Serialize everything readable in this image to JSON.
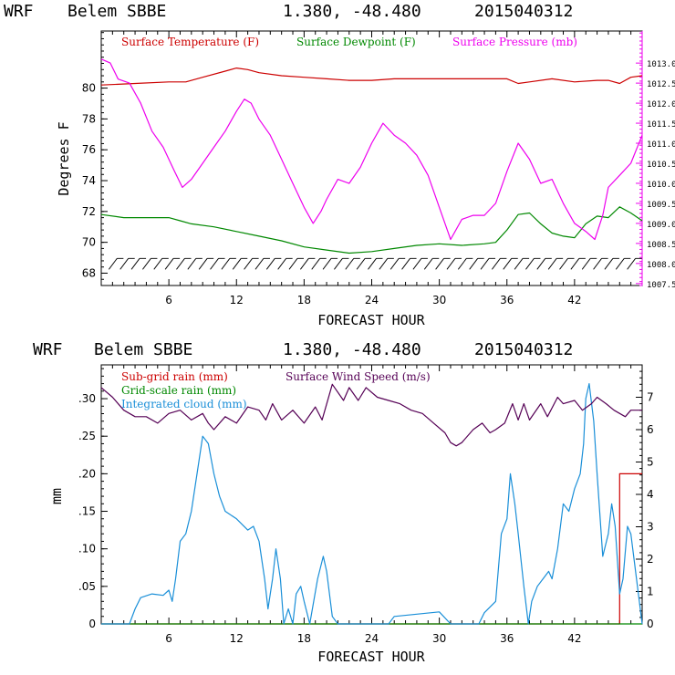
{
  "chart_data": [
    {
      "type": "line",
      "title": "WRF   Belem SBBE     1.380, -48.480  2015040312",
      "header": {
        "model": "WRF",
        "station": "Belem SBBE",
        "coords": "1.380, -48.480",
        "init": "2015040312"
      },
      "xlabel": "FORECAST HOUR",
      "ylabel": "Degrees F",
      "xlim": [
        0,
        48
      ],
      "ylim": [
        67.2,
        83.7
      ],
      "y2lim": [
        1007.45,
        1013.8
      ],
      "x_ticks": [
        6,
        12,
        18,
        24,
        30,
        36,
        42
      ],
      "x_tick_labels": [
        "6",
        "12",
        "18",
        "24",
        "30",
        "36",
        "42"
      ],
      "y_ticks": [
        68,
        70,
        72,
        74,
        76,
        78,
        80
      ],
      "y_tick_labels": [
        "68",
        "70",
        "72",
        "74",
        "76",
        "78",
        "80"
      ],
      "y2_ticks": [
        1007.5,
        1008.0,
        1008.5,
        1009.0,
        1009.5,
        1010.0,
        1010.5,
        1011.0,
        1011.5,
        1012.0,
        1012.5,
        1013.0
      ],
      "y2_tick_labels": [
        "1007.5",
        "1008.0",
        "1008.5",
        "1009.0",
        "1009.5",
        "1010.0",
        "1010.5",
        "1011.0",
        "1011.5",
        "1012.0",
        "1012.5",
        "1013.0"
      ],
      "wind_barb_level": 68.6,
      "legend": [
        {
          "label": "Surface Temperature (F)",
          "color": "#cc0000"
        },
        {
          "label": "Surface Dewpoint (F)",
          "color": "#008800"
        },
        {
          "label": "Surface Pressure (mb)",
          "color": "#ee00ee"
        }
      ],
      "series": [
        {
          "name": "Surface Temperature (F)",
          "axis": "left",
          "color": "#cc0000",
          "x": [
            0,
            3,
            6,
            7.5,
            9,
            11,
            12,
            13,
            14,
            16,
            18,
            20,
            22,
            24,
            26,
            28,
            30,
            32,
            34,
            36,
            37,
            38,
            40,
            42,
            44,
            45,
            46,
            47,
            48
          ],
          "values": [
            80.2,
            80.3,
            80.4,
            80.4,
            80.7,
            81.1,
            81.3,
            81.2,
            81.0,
            80.8,
            80.7,
            80.6,
            80.5,
            80.5,
            80.6,
            80.6,
            80.6,
            80.6,
            80.6,
            80.6,
            80.3,
            80.4,
            80.6,
            80.4,
            80.5,
            80.5,
            80.3,
            80.7,
            80.8
          ]
        },
        {
          "name": "Surface Dewpoint (F)",
          "axis": "left",
          "color": "#008800",
          "x": [
            0,
            2,
            4,
            6,
            7,
            8,
            10,
            12,
            14,
            16,
            18,
            20,
            22,
            24,
            26,
            28,
            30,
            32,
            34,
            35,
            36,
            37,
            38,
            39,
            40,
            41,
            42,
            43,
            44,
            45,
            46,
            47,
            48
          ],
          "values": [
            71.8,
            71.6,
            71.6,
            71.6,
            71.4,
            71.2,
            71.0,
            70.7,
            70.4,
            70.1,
            69.7,
            69.5,
            69.3,
            69.4,
            69.6,
            69.8,
            69.9,
            69.8,
            69.9,
            70.0,
            70.8,
            71.8,
            71.9,
            71.2,
            70.6,
            70.4,
            70.3,
            71.2,
            71.7,
            71.6,
            72.3,
            71.9,
            71.4
          ]
        },
        {
          "name": "Surface Pressure (mb)",
          "axis": "right",
          "color": "#ee00ee",
          "x": [
            0,
            0.8,
            1.5,
            2.5,
            3.5,
            4.5,
            5.5,
            6.5,
            7.2,
            8,
            9,
            10,
            11,
            12,
            12.7,
            13.3,
            14,
            15,
            16,
            17,
            18,
            18.8,
            19.5,
            20,
            21,
            22,
            23,
            24,
            25,
            26,
            27,
            28,
            29,
            30,
            31,
            32,
            33,
            34,
            35,
            36,
            37,
            38,
            39,
            40,
            41,
            42,
            43,
            43.8,
            44.5,
            45,
            46,
            47,
            48
          ],
          "values": [
            1013.1,
            1013.0,
            1012.6,
            1012.5,
            1012.0,
            1011.3,
            1010.9,
            1010.3,
            1009.9,
            1010.1,
            1010.5,
            1010.9,
            1011.3,
            1011.8,
            1012.1,
            1012.0,
            1011.6,
            1011.2,
            1010.6,
            1010.0,
            1009.4,
            1009.0,
            1009.3,
            1009.6,
            1010.1,
            1010.0,
            1010.4,
            1011.0,
            1011.5,
            1011.2,
            1011.0,
            1010.7,
            1010.2,
            1009.4,
            1008.6,
            1009.1,
            1009.2,
            1009.2,
            1009.5,
            1010.3,
            1011.0,
            1010.6,
            1010.0,
            1010.1,
            1009.5,
            1009.0,
            1008.8,
            1008.6,
            1009.2,
            1009.9,
            1010.2,
            1010.5,
            1011.2
          ]
        }
      ]
    },
    {
      "type": "line",
      "title": "WRF   Belem SBBE     1.380, -48.480  2015040312",
      "header": {
        "model": "WRF",
        "station": "Belem SBBE",
        "coords": "1.380, -48.480",
        "init": "2015040312"
      },
      "xlabel": "FORECAST HOUR",
      "ylabel": "mm",
      "xlim": [
        0,
        48
      ],
      "ylim": [
        0,
        0.345
      ],
      "y2lim": [
        0,
        8.0
      ],
      "x_ticks": [
        6,
        12,
        18,
        24,
        30,
        36,
        42
      ],
      "x_tick_labels": [
        "6",
        "12",
        "18",
        "24",
        "30",
        "36",
        "42"
      ],
      "y_ticks": [
        0,
        0.05,
        0.1,
        0.15,
        0.2,
        0.25,
        0.3
      ],
      "y_tick_labels": [
        "0",
        ".05",
        ".10",
        ".15",
        ".20",
        ".25",
        ".30"
      ],
      "y2_ticks": [
        0,
        1,
        2,
        3,
        4,
        5,
        6,
        7
      ],
      "y2_tick_labels": [
        "0",
        "1",
        "2",
        "3",
        "4",
        "5",
        "6",
        "7"
      ],
      "legend": [
        {
          "label": "Sub-grid rain (mm)",
          "color": "#cc0000"
        },
        {
          "label": "Surface Wind Speed (m/s)",
          "color": "#550055"
        },
        {
          "label": "Grid-scale rain (mm)",
          "color": "#008800"
        },
        {
          "label": "Integrated cloud (mm)",
          "color": "#1a8fd8"
        }
      ],
      "series": [
        {
          "name": "Sub-grid rain (mm)",
          "axis": "left",
          "color": "#cc0000",
          "x": [
            0,
            46,
            46,
            47,
            47,
            48
          ],
          "values": [
            0,
            0,
            0.2,
            0.2,
            0.2,
            0.2
          ]
        },
        {
          "name": "Grid-scale rain (mm)",
          "axis": "left",
          "color": "#008800",
          "x": [
            0,
            48
          ],
          "values": [
            0,
            0
          ]
        },
        {
          "name": "Integrated cloud (mm)",
          "axis": "left",
          "color": "#1a8fd8",
          "x": [
            0,
            2.5,
            3,
            3.5,
            4.5,
            5.5,
            6,
            6.3,
            6.6,
            7,
            7.5,
            8,
            8.5,
            9,
            9.5,
            10,
            10.5,
            11,
            12,
            13,
            13.5,
            14,
            14.5,
            14.8,
            15.2,
            15.5,
            15.9,
            16.2,
            16.6,
            17,
            17.3,
            17.7,
            18,
            18.5,
            19.2,
            19.7,
            20,
            20.5,
            21,
            22,
            25.5,
            26,
            30,
            31,
            33.5,
            34,
            35,
            35.5,
            36,
            36.3,
            36.7,
            37,
            37.5,
            37.9,
            38.2,
            38.7,
            39.2,
            39.7,
            40,
            40.5,
            41,
            41.5,
            42,
            42.5,
            42.8,
            43,
            43.3,
            43.7,
            44,
            44.5,
            45,
            45.3,
            45.6,
            46,
            46.3,
            46.7,
            47,
            48
          ],
          "values": [
            0,
            0,
            0.02,
            0.035,
            0.04,
            0.038,
            0.045,
            0.03,
            0.06,
            0.11,
            0.12,
            0.15,
            0.2,
            0.25,
            0.24,
            0.2,
            0.17,
            0.15,
            0.14,
            0.125,
            0.13,
            0.11,
            0.06,
            0.02,
            0.06,
            0.1,
            0.06,
            0.0,
            0.02,
            0.0,
            0.04,
            0.05,
            0.03,
            0.0,
            0.06,
            0.09,
            0.07,
            0.01,
            0.0,
            0.0,
            0.0,
            0.01,
            0.016,
            0.0,
            0.0,
            0.015,
            0.03,
            0.12,
            0.14,
            0.2,
            0.16,
            0.12,
            0.05,
            0.0,
            0.03,
            0.05,
            0.06,
            0.07,
            0.06,
            0.1,
            0.16,
            0.15,
            0.18,
            0.2,
            0.24,
            0.3,
            0.32,
            0.27,
            0.2,
            0.09,
            0.12,
            0.16,
            0.13,
            0.04,
            0.06,
            0.13,
            0.12,
            0.0
          ]
        },
        {
          "name": "Surface Wind Speed (m/s)",
          "axis": "right",
          "color": "#550055",
          "x": [
            0,
            1,
            2,
            3,
            4,
            5,
            6,
            7,
            8,
            9,
            9.5,
            10,
            11,
            12,
            13,
            14,
            14.6,
            15.2,
            16,
            17,
            18,
            19,
            19.6,
            20.5,
            21.5,
            22,
            22.8,
            23.5,
            24.5,
            25.5,
            26.5,
            27.5,
            28.5,
            29.5,
            30.5,
            31,
            31.5,
            32,
            33,
            33.8,
            34.5,
            35,
            35.8,
            36.5,
            37,
            37.5,
            38,
            39,
            39.6,
            40.5,
            41,
            42,
            42.7,
            43.5,
            44,
            44.8,
            45.5,
            46.5,
            47,
            48
          ],
          "values": [
            7.3,
            7.0,
            6.6,
            6.4,
            6.4,
            6.2,
            6.5,
            6.6,
            6.3,
            6.5,
            6.2,
            6.0,
            6.4,
            6.2,
            6.7,
            6.6,
            6.3,
            6.8,
            6.3,
            6.6,
            6.2,
            6.7,
            6.3,
            7.4,
            6.9,
            7.3,
            6.9,
            7.3,
            7.0,
            6.9,
            6.8,
            6.6,
            6.5,
            6.2,
            5.9,
            5.6,
            5.5,
            5.6,
            6.0,
            6.2,
            5.9,
            6.0,
            6.2,
            6.8,
            6.3,
            6.8,
            6.3,
            6.8,
            6.4,
            7.0,
            6.8,
            6.9,
            6.6,
            6.8,
            7.0,
            6.8,
            6.6,
            6.4,
            6.6,
            6.6
          ]
        }
      ]
    }
  ]
}
